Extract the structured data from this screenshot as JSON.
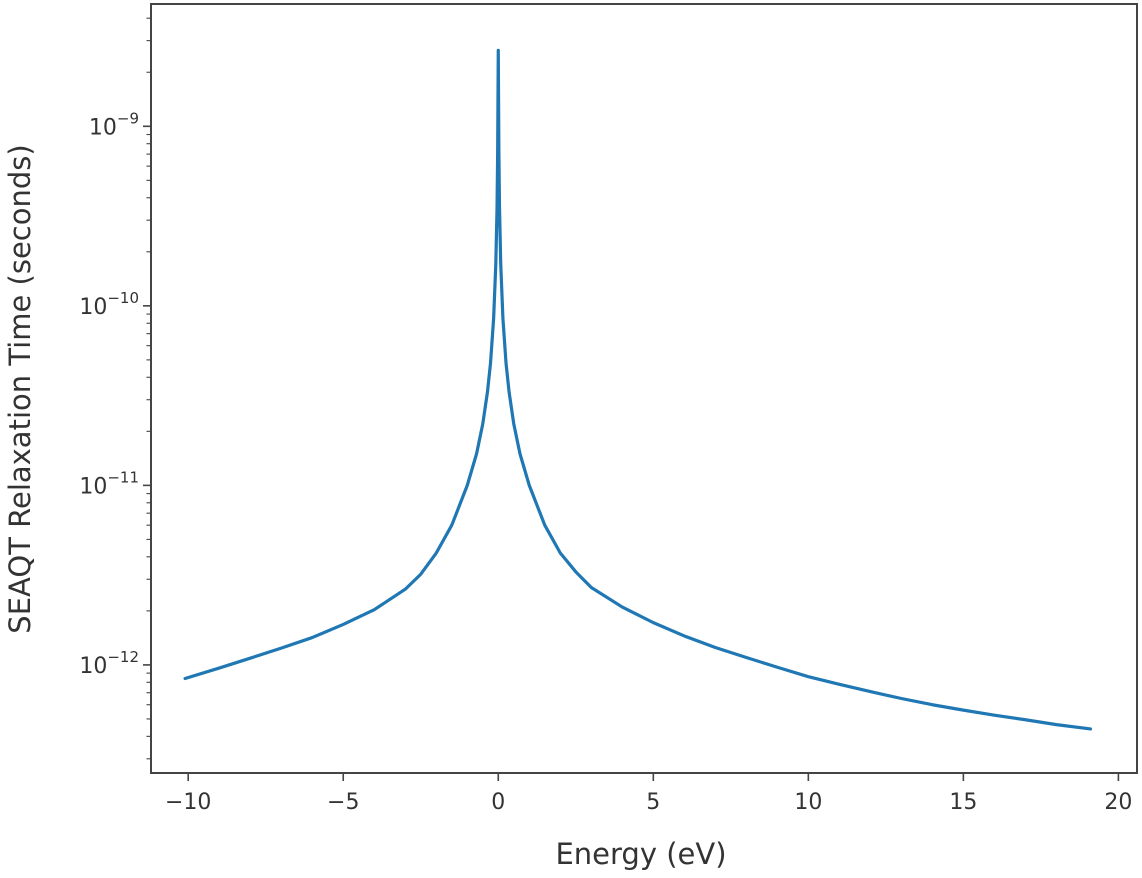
{
  "chart_data": {
    "type": "line",
    "title": "",
    "xlabel": "Energy (eV)",
    "ylabel": "SEAQT Relaxation Time (seconds)",
    "xlim": [
      -11.2,
      20.6
    ],
    "ylim": [
      2.5e-13,
      4.8e-09
    ],
    "yscale": "log",
    "grid": false,
    "x_ticks": [
      {
        "value": -10,
        "label": "−10"
      },
      {
        "value": -5,
        "label": "−5"
      },
      {
        "value": 0,
        "label": "0"
      },
      {
        "value": 5,
        "label": "5"
      },
      {
        "value": 10,
        "label": "10"
      },
      {
        "value": 15,
        "label": "15"
      },
      {
        "value": 20,
        "label": "20"
      }
    ],
    "y_ticks": [
      {
        "value": 1e-12,
        "base": "10",
        "exponent": "−12"
      },
      {
        "value": 1e-11,
        "base": "10",
        "exponent": "−11"
      },
      {
        "value": 1e-10,
        "base": "10",
        "exponent": "−10"
      },
      {
        "value": 1e-09,
        "base": "10",
        "exponent": "−9"
      }
    ],
    "series": [
      {
        "color": "#1f77b4",
        "x": [
          -10.1,
          -9,
          -8,
          -7,
          -6,
          -5,
          -4,
          -3,
          -2.5,
          -2,
          -1.5,
          -1,
          -0.7,
          -0.5,
          -0.35,
          -0.25,
          -0.15,
          -0.08,
          -0.04,
          -0.02,
          0,
          0.02,
          0.04,
          0.08,
          0.15,
          0.25,
          0.35,
          0.5,
          0.7,
          1,
          1.5,
          2,
          2.5,
          3,
          4,
          5,
          6,
          7,
          8,
          9,
          10,
          11,
          12,
          13,
          14,
          15,
          16,
          17,
          18,
          19.1
        ],
        "y": [
          8.4e-13,
          9.6e-13,
          1.09e-12,
          1.24e-12,
          1.42e-12,
          1.68e-12,
          2.03e-12,
          2.64e-12,
          3.2e-12,
          4.2e-12,
          6e-12,
          1e-11,
          1.5e-11,
          2.2e-11,
          3.3e-11,
          4.8e-11,
          8.5e-11,
          1.7e-10,
          3.5e-10,
          7e-10,
          2.65e-09,
          7e-10,
          3.5e-10,
          1.7e-10,
          8.5e-11,
          4.8e-11,
          3.3e-11,
          2.2e-11,
          1.5e-11,
          1e-11,
          6e-12,
          4.2e-12,
          3.3e-12,
          2.7e-12,
          2.1e-12,
          1.72e-12,
          1.45e-12,
          1.25e-12,
          1.1e-12,
          9.7e-13,
          8.6e-13,
          7.8e-13,
          7.1e-13,
          6.5e-13,
          6e-13,
          5.6e-13,
          5.25e-13,
          4.95e-13,
          4.65e-13,
          4.4e-13
        ]
      }
    ]
  }
}
